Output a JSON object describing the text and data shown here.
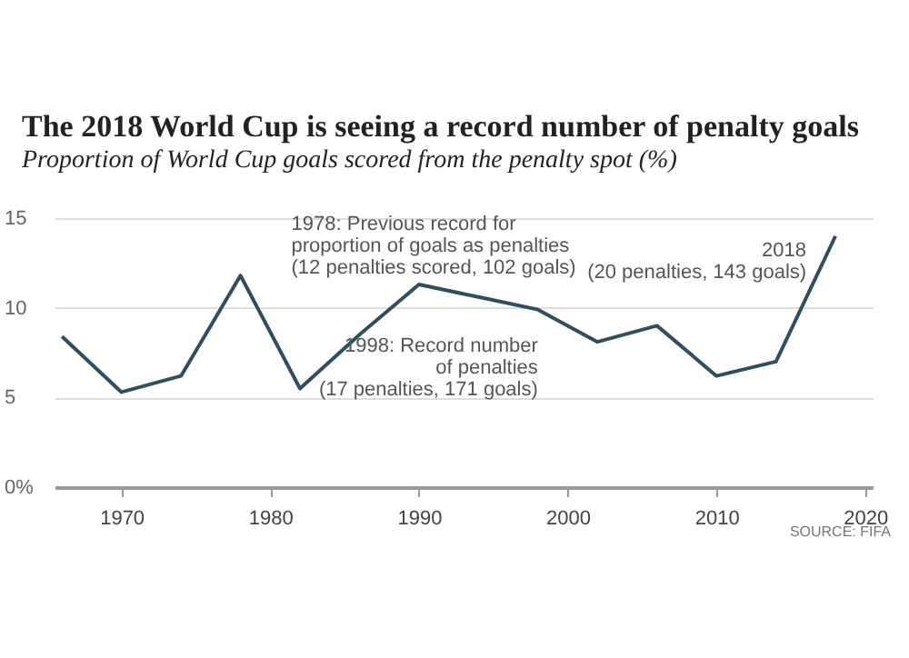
{
  "chart_data": {
    "type": "line",
    "title": "The 2018 World Cup is seeing a record number of penalty goals",
    "subtitle": "Proportion of World Cup goals scored from the penalty spot (%)",
    "x": [
      1966,
      1970,
      1974,
      1978,
      1982,
      1986,
      1990,
      1994,
      1998,
      2002,
      2006,
      2010,
      2014,
      2018
    ],
    "series": [
      {
        "color": "#2f4f5f",
        "values": [
          8.4,
          5.3,
          6.2,
          11.8,
          5.5,
          8.5,
          11.3,
          10.6,
          9.9,
          8.1,
          9,
          6.2,
          7,
          14
        ]
      }
    ],
    "xlim": [
      1965.5,
      2020.5
    ],
    "xticks": [
      1970,
      1980,
      1990,
      2000,
      2010,
      2020
    ],
    "ylim": [
      0,
      15
    ],
    "yticks": [
      {
        "value": 0,
        "label": "0%"
      },
      5,
      10,
      15
    ],
    "grid": "y",
    "marker": "none",
    "line_style": "solid",
    "annotations": [
      {
        "text": "1978: Previous record for\nproportion of goals as penalties\n(12 penalties scored, 102 goals)",
        "x": 1978,
        "y": 11.8
      },
      {
        "text": "1998: Record number\nof penalties\n(17 penalties, 171 goals)",
        "x": 1998,
        "y": 9.9
      },
      {
        "text": "2018\n(20 penalties, 143 goals)",
        "x": 2018,
        "y": 14
      },
      "SOURCE: FIFA"
    ]
  }
}
